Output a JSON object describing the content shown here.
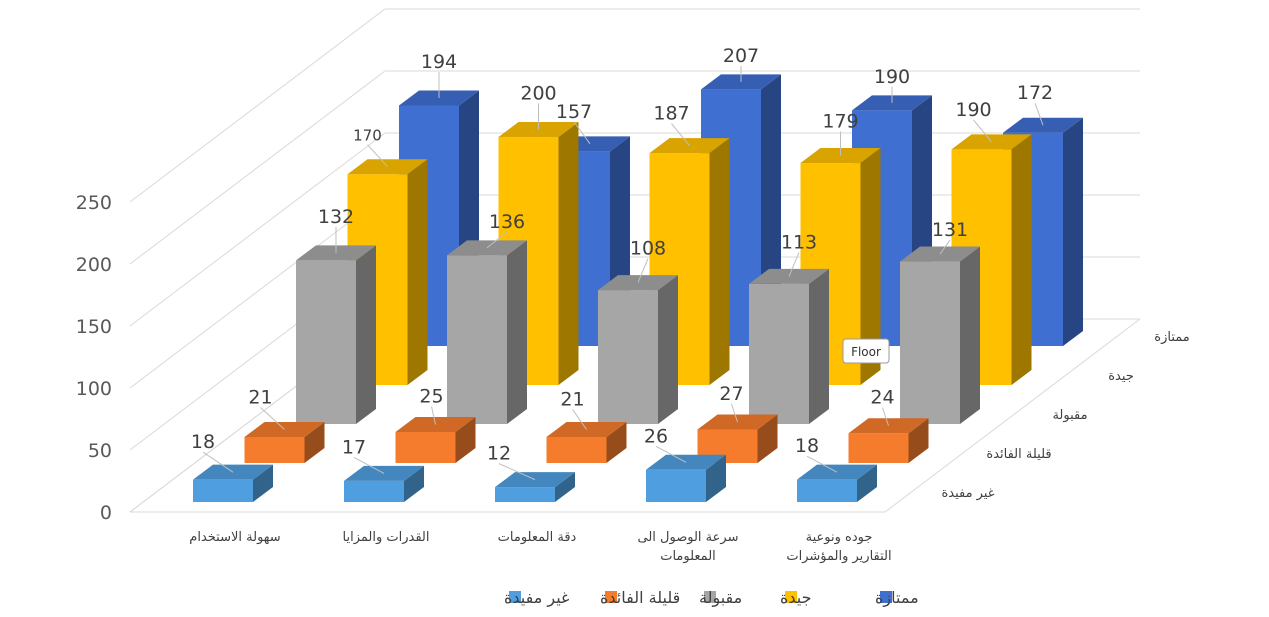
{
  "chart_data": {
    "type": "bar",
    "categories": [
      "سهولة الاستخدام",
      "القدرات والمزايا",
      "دقة المعلومات",
      "سرعة الوصول الى المعلومات",
      "جوده ونوعية التقارير والمؤشرات"
    ],
    "series": [
      {
        "name": "غير مفيدة",
        "values": [
          18,
          17,
          12,
          26,
          18
        ],
        "color": "#4f9fe0"
      },
      {
        "name": "قليلة الفائدة",
        "values": [
          21,
          25,
          21,
          27,
          24
        ],
        "color": "#f47c2c"
      },
      {
        "name": "مقبولة",
        "values": [
          132,
          136,
          108,
          113,
          131
        ],
        "color": "#a6a6a6"
      },
      {
        "name": "جيدة",
        "values": [
          170,
          200,
          187,
          179,
          190
        ],
        "color": "#ffc000"
      },
      {
        "name": "ممتازة",
        "values": [
          194,
          157,
          207,
          190,
          172
        ],
        "color": "#3f6fd1"
      }
    ],
    "yticks": [
      0,
      50,
      100,
      150,
      200,
      250
    ],
    "ylim": [
      0,
      250
    ],
    "legend_position": "bottom",
    "grid": true
  },
  "tooltip": {
    "text": "Floor"
  }
}
